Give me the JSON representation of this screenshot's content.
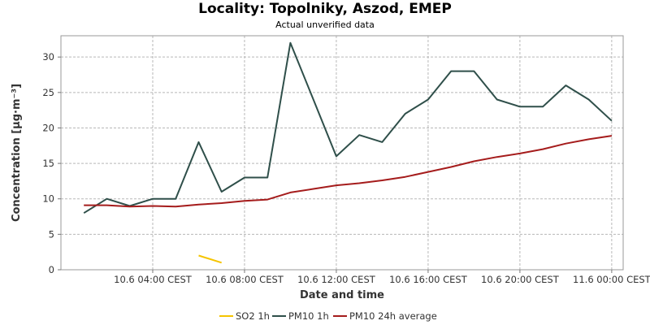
{
  "title": "Locality: Topolniky, Aszod, EMEP",
  "subtitle": "Actual unverified data",
  "colors": {
    "so2": "#f5c400",
    "pm10_1h": "#2f4f4a",
    "pm10_24h": "#a51c1c",
    "grid": "#b8b8b8"
  },
  "chart_data": {
    "type": "line",
    "title": "Locality: Topolniky, Aszod, EMEP",
    "subtitle": "Actual unverified data",
    "xlabel": "Date and time",
    "ylabel": "Concentration [µg·m⁻³]",
    "ylim": [
      0,
      33
    ],
    "xlim": [
      "2024-06-10T00:00",
      "2024-06-11T00:30"
    ],
    "x_ticks": [
      {
        "x": "2024-06-10T04:00",
        "label": "10.6 04:00 CEST"
      },
      {
        "x": "2024-06-10T08:00",
        "label": "10.6 08:00 CEST"
      },
      {
        "x": "2024-06-10T12:00",
        "label": "10.6 12:00 CEST"
      },
      {
        "x": "2024-06-10T16:00",
        "label": "10.6 16:00 CEST"
      },
      {
        "x": "2024-06-10T20:00",
        "label": "10.6 20:00 CEST"
      },
      {
        "x": "2024-06-11T00:00",
        "label": "11.6 00:00 CEST"
      }
    ],
    "y_ticks": [
      0,
      5,
      10,
      15,
      20,
      25,
      30
    ],
    "grid": true,
    "legend_position": "bottom",
    "series": [
      {
        "name": "SO2 1h",
        "color_key": "so2",
        "x": [
          "2024-06-10T06:00",
          "2024-06-10T07:00"
        ],
        "y": [
          2,
          1
        ]
      },
      {
        "name": "PM10 1h",
        "color_key": "pm10_1h",
        "x": [
          "2024-06-10T01:00",
          "2024-06-10T02:00",
          "2024-06-10T03:00",
          "2024-06-10T04:00",
          "2024-06-10T05:00",
          "2024-06-10T06:00",
          "2024-06-10T07:00",
          "2024-06-10T08:00",
          "2024-06-10T09:00",
          "2024-06-10T10:00",
          "2024-06-10T11:00",
          "2024-06-10T12:00",
          "2024-06-10T13:00",
          "2024-06-10T14:00",
          "2024-06-10T15:00",
          "2024-06-10T16:00",
          "2024-06-10T17:00",
          "2024-06-10T18:00",
          "2024-06-10T19:00",
          "2024-06-10T20:00",
          "2024-06-10T21:00",
          "2024-06-10T22:00",
          "2024-06-10T23:00",
          "2024-06-11T00:00"
        ],
        "y": [
          8,
          10,
          9,
          10,
          10,
          18,
          11,
          13,
          13,
          32,
          24,
          16,
          19,
          18,
          22,
          24,
          28,
          28,
          24,
          23,
          23,
          26,
          24,
          21
        ]
      },
      {
        "name": "PM10 24h average",
        "color_key": "pm10_24h",
        "x": [
          "2024-06-10T01:00",
          "2024-06-10T02:00",
          "2024-06-10T03:00",
          "2024-06-10T04:00",
          "2024-06-10T05:00",
          "2024-06-10T06:00",
          "2024-06-10T07:00",
          "2024-06-10T08:00",
          "2024-06-10T09:00",
          "2024-06-10T10:00",
          "2024-06-10T11:00",
          "2024-06-10T12:00",
          "2024-06-10T13:00",
          "2024-06-10T14:00",
          "2024-06-10T15:00",
          "2024-06-10T16:00",
          "2024-06-10T17:00",
          "2024-06-10T18:00",
          "2024-06-10T19:00",
          "2024-06-10T20:00",
          "2024-06-10T21:00",
          "2024-06-10T22:00",
          "2024-06-10T23:00",
          "2024-06-11T00:00"
        ],
        "y": [
          9.1,
          9.1,
          8.9,
          9.0,
          8.9,
          9.2,
          9.4,
          9.7,
          9.9,
          10.9,
          11.4,
          11.9,
          12.2,
          12.6,
          13.1,
          13.8,
          14.5,
          15.3,
          15.9,
          16.4,
          17.0,
          17.8,
          18.4,
          18.9
        ]
      }
    ]
  }
}
